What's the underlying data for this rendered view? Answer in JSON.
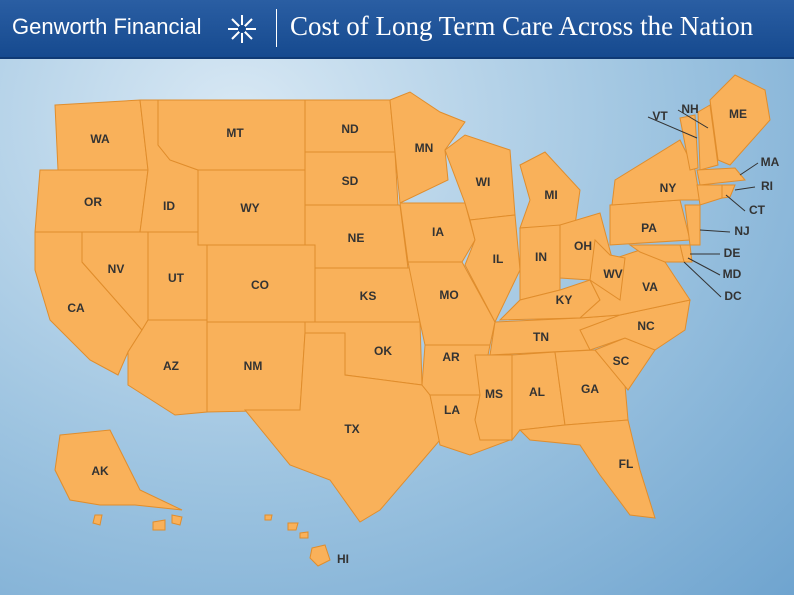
{
  "header": {
    "brand": "Genworth Financial",
    "title": "Cost of Long Term Care Across the Nation"
  },
  "states": [
    "WA",
    "OR",
    "CA",
    "NV",
    "ID",
    "MT",
    "WY",
    "UT",
    "CO",
    "AZ",
    "NM",
    "ND",
    "SD",
    "NE",
    "KS",
    "OK",
    "TX",
    "MN",
    "IA",
    "MO",
    "AR",
    "LA",
    "WI",
    "IL",
    "MI",
    "IN",
    "OH",
    "KY",
    "TN",
    "MS",
    "AL",
    "GA",
    "FL",
    "SC",
    "NC",
    "VA",
    "WV",
    "PA",
    "NY",
    "VT",
    "NH",
    "ME",
    "MA",
    "RI",
    "CT",
    "NJ",
    "DE",
    "MD",
    "DC",
    "AK",
    "HI"
  ]
}
